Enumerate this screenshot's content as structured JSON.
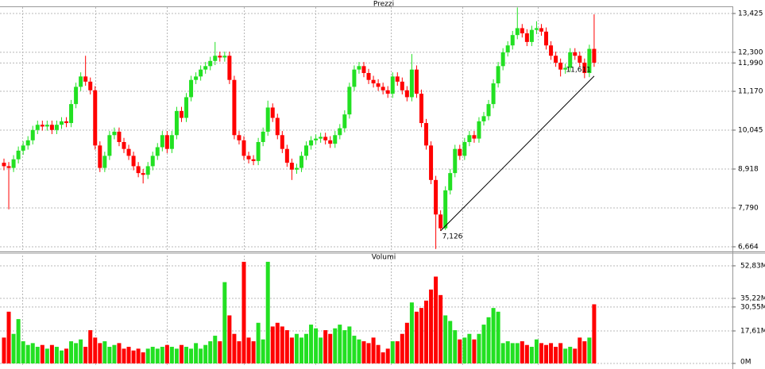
{
  "chart_data": {
    "type": "candlestick",
    "title": "Prezzi",
    "volume_title": "Volumi",
    "up_color": "#22e022",
    "down_color": "#ff0000",
    "grid": true,
    "ylim": [
      6.549,
      13.632
    ],
    "yticks": [
      {
        "value": 13.425,
        "label": "13,425"
      },
      {
        "value": 12.3,
        "label": "12,300"
      },
      {
        "value": 11.99,
        "label": "11,990"
      },
      {
        "value": 11.17,
        "label": "11,170"
      },
      {
        "value": 10.045,
        "label": "10,045"
      },
      {
        "value": 8.918,
        "label": "8,918"
      },
      {
        "value": 7.79,
        "label": "7,790"
      },
      {
        "value": 6.664,
        "label": "6,664"
      }
    ],
    "y2lim": [
      0,
      58.4
    ],
    "y2ticks": [
      {
        "value": 52.83,
        "label": "52,83M"
      },
      {
        "value": 35.22,
        "label": "35,22M"
      },
      {
        "value": 30.55,
        "label": "30,55M"
      },
      {
        "value": 17.61,
        "label": "17,61M"
      },
      {
        "value": 0,
        "label": "0M"
      }
    ],
    "open": [
      9.1,
      9.0,
      8.95,
      9.2,
      9.45,
      9.6,
      9.75,
      10.05,
      10.2,
      10.15,
      10.2,
      10.05,
      10.2,
      10.3,
      10.25,
      10.8,
      11.3,
      11.6,
      11.45,
      11.2,
      9.6,
      8.95,
      9.3,
      9.9,
      10.0,
      9.7,
      9.5,
      9.3,
      9.0,
      8.8,
      8.75,
      9.0,
      9.3,
      9.55,
      9.9,
      9.5,
      9.9,
      10.6,
      10.4,
      11.0,
      11.5,
      11.6,
      11.8,
      11.9,
      12.05,
      12.2,
      12.15,
      12.2,
      11.5,
      9.9,
      9.75,
      9.3,
      9.2,
      9.15,
      9.7,
      10.0,
      10.7,
      10.4,
      9.9,
      9.5,
      9.1,
      8.9,
      8.95,
      9.3,
      9.6,
      9.75,
      9.8,
      9.85,
      9.75,
      9.65,
      9.9,
      10.1,
      10.5,
      11.3,
      11.8,
      11.9,
      11.7,
      11.5,
      11.4,
      11.3,
      11.2,
      11.1,
      11.6,
      11.45,
      11.2,
      11.0,
      11.8,
      11.1,
      10.25,
      9.6,
      8.6,
      7.6,
      7.2,
      8.3,
      8.8,
      9.5,
      9.3,
      9.7,
      9.9,
      9.8,
      10.3,
      10.45,
      10.8,
      11.4,
      11.9,
      12.3,
      12.5,
      12.8,
      13.0,
      12.85,
      12.6,
      12.95,
      13.0,
      12.9,
      12.5,
      12.2,
      12.0,
      11.8,
      11.85,
      12.3,
      12.2,
      12.0,
      11.7,
      12.4
    ],
    "high": [
      9.22,
      9.12,
      9.32,
      9.57,
      9.72,
      9.87,
      10.17,
      10.32,
      10.32,
      10.32,
      10.32,
      10.32,
      10.42,
      10.42,
      10.92,
      11.42,
      11.72,
      12.2,
      11.57,
      11.32,
      9.72,
      9.42,
      10.02,
      10.12,
      10.12,
      9.82,
      9.62,
      9.42,
      9.12,
      8.92,
      9.12,
      9.42,
      9.67,
      10.02,
      10.02,
      10.02,
      10.72,
      10.72,
      11.12,
      11.62,
      11.72,
      11.92,
      12.02,
      12.17,
      12.6,
      12.32,
      12.32,
      12.32,
      11.62,
      10.02,
      9.87,
      9.42,
      9.32,
      9.82,
      10.12,
      10.9,
      10.82,
      10.52,
      10.02,
      9.62,
      9.22,
      9.07,
      9.42,
      9.72,
      9.87,
      9.92,
      9.97,
      9.97,
      9.87,
      10.02,
      10.22,
      10.62,
      11.42,
      11.92,
      12.02,
      12.02,
      11.82,
      11.62,
      11.52,
      11.42,
      11.32,
      11.72,
      11.72,
      11.57,
      11.32,
      12.25,
      11.92,
      11.22,
      10.37,
      9.72,
      8.72,
      7.72,
      8.42,
      8.92,
      9.62,
      9.62,
      9.82,
      10.02,
      10.02,
      10.42,
      10.57,
      10.92,
      11.52,
      12.02,
      12.42,
      12.62,
      12.92,
      13.6,
      13.12,
      12.97,
      13.07,
      13.2,
      13.12,
      13.02,
      12.62,
      12.32,
      12.12,
      11.97,
      12.42,
      12.42,
      12.32,
      12.12,
      12.52,
      13.4
    ],
    "low": [
      8.88,
      7.75,
      8.83,
      9.08,
      9.33,
      9.48,
      9.63,
      9.93,
      10.03,
      10.03,
      9.93,
      9.93,
      10.08,
      10.13,
      10.13,
      10.68,
      11.18,
      11.33,
      11.08,
      9.48,
      8.83,
      8.83,
      9.18,
      9.78,
      9.58,
      9.38,
      9.18,
      8.88,
      8.68,
      8.5,
      8.63,
      8.88,
      9.18,
      9.43,
      9.38,
      9.38,
      9.78,
      10.28,
      10.28,
      10.88,
      11.38,
      11.48,
      11.68,
      11.78,
      11.93,
      12.03,
      12.03,
      11.38,
      9.78,
      9.63,
      9.18,
      9.08,
      9.03,
      9.03,
      9.58,
      9.88,
      10.28,
      9.78,
      9.38,
      8.98,
      8.6,
      8.78,
      8.83,
      9.18,
      9.48,
      9.63,
      9.68,
      9.63,
      9.53,
      9.53,
      9.78,
      9.98,
      10.38,
      11.18,
      11.68,
      11.58,
      11.38,
      11.28,
      11.18,
      11.08,
      10.98,
      10.98,
      11.33,
      11.08,
      10.88,
      10.88,
      10.98,
      10.13,
      9.48,
      8.48,
      6.6,
      7.126,
      7.15,
      8.18,
      8.68,
      9.18,
      9.18,
      9.58,
      9.68,
      9.68,
      10.18,
      10.33,
      10.68,
      11.28,
      11.78,
      12.18,
      12.38,
      12.68,
      12.73,
      12.48,
      12.48,
      12.83,
      12.78,
      12.38,
      12.08,
      11.88,
      11.6,
      11.68,
      11.73,
      12.08,
      11.88,
      11.55,
      11.58,
      11.88
    ],
    "close": [
      9.0,
      8.95,
      9.2,
      9.45,
      9.6,
      9.75,
      10.05,
      10.2,
      10.15,
      10.2,
      10.05,
      10.2,
      10.3,
      10.25,
      10.8,
      11.3,
      11.6,
      11.45,
      11.2,
      9.6,
      8.95,
      9.3,
      9.9,
      10.0,
      9.7,
      9.5,
      9.3,
      9.0,
      8.8,
      8.75,
      9.0,
      9.3,
      9.55,
      9.9,
      9.5,
      9.9,
      10.6,
      10.4,
      11.0,
      11.5,
      11.6,
      11.8,
      11.9,
      12.05,
      12.2,
      12.15,
      12.2,
      11.5,
      9.9,
      9.75,
      9.3,
      9.2,
      9.15,
      9.7,
      10.0,
      10.7,
      10.4,
      9.9,
      9.5,
      9.1,
      8.9,
      8.95,
      9.3,
      9.6,
      9.75,
      9.8,
      9.85,
      9.75,
      9.65,
      9.9,
      10.1,
      10.5,
      11.3,
      11.8,
      11.9,
      11.7,
      11.5,
      11.4,
      11.3,
      11.2,
      11.1,
      11.6,
      11.45,
      11.2,
      11.0,
      11.8,
      11.1,
      10.25,
      9.6,
      8.6,
      7.6,
      7.2,
      8.3,
      8.8,
      9.5,
      9.3,
      9.7,
      9.9,
      9.8,
      10.3,
      10.45,
      10.8,
      11.4,
      11.9,
      12.3,
      12.5,
      12.8,
      13.0,
      12.85,
      12.6,
      12.95,
      13.0,
      12.9,
      12.5,
      12.2,
      12.0,
      11.8,
      11.85,
      12.3,
      12.2,
      12.0,
      11.7,
      12.4,
      12.0
    ],
    "volume": [
      14,
      28,
      16,
      24,
      12,
      10,
      11,
      9,
      10,
      8,
      10,
      9,
      7,
      8,
      12,
      11,
      13,
      9,
      18,
      14,
      11,
      12,
      9,
      10,
      11,
      8,
      9,
      7,
      8,
      6,
      8,
      9,
      8,
      9,
      10,
      9,
      8,
      10,
      9,
      8,
      11,
      8,
      10,
      12,
      15,
      12,
      44,
      26,
      16,
      12,
      55,
      14,
      12,
      22,
      13,
      55,
      20,
      22,
      20,
      18,
      14,
      16,
      14,
      16,
      21,
      19,
      14,
      18,
      16,
      19,
      21,
      18,
      20,
      15,
      13,
      12,
      11,
      14,
      10,
      6,
      8,
      12,
      12,
      16,
      22,
      33,
      28,
      30,
      34,
      40,
      47,
      37,
      26,
      23,
      18,
      13,
      14,
      16,
      13,
      16,
      21,
      25,
      30,
      28,
      11,
      12,
      11,
      11,
      12,
      10,
      9,
      13,
      11,
      10,
      11,
      9,
      11,
      8,
      9,
      8,
      14,
      12,
      14,
      32
    ],
    "annotations": [
      {
        "label": "7,126",
        "value": 7.126,
        "index": 91
      },
      {
        "label": "11,611",
        "value": 11.611,
        "index": 123
      }
    ],
    "trendline": true
  }
}
